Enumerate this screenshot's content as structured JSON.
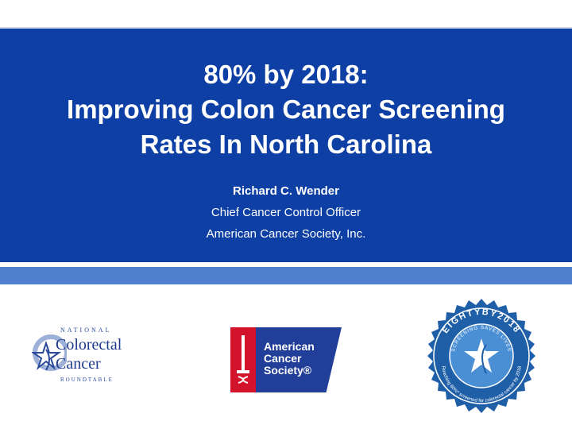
{
  "slide": {
    "title_lines": [
      "80% by 2018:",
      "Improving Colon Cancer Screening",
      "Rates In North Carolina"
    ],
    "presenter": {
      "name": "Richard C. Wender",
      "role": "Chief Cancer Control Officer",
      "organization": "American Cancer Society, Inc."
    }
  },
  "logos": {
    "nccrt": {
      "top_text": "NATIONAL",
      "line1": "Colorectal",
      "line2": "Cancer",
      "bottom_text": "ROUNDTABLE"
    },
    "acs": {
      "line1": "American",
      "line2": "Cancer",
      "line3": "Society®"
    },
    "seal": {
      "outer_top": "EIGHTYBY2018",
      "inner_top": "SCREENING SAVES LIVES",
      "bottom_arc": "Reaching 80%* screened for colorectal cancer by 2018"
    }
  },
  "colors": {
    "title_band": "#0d3fa4",
    "accent_bar": "#4f7fcf",
    "acs_red": "#d3122b",
    "acs_blue": "#213f99",
    "seal_blue": "#1f5fa8"
  }
}
